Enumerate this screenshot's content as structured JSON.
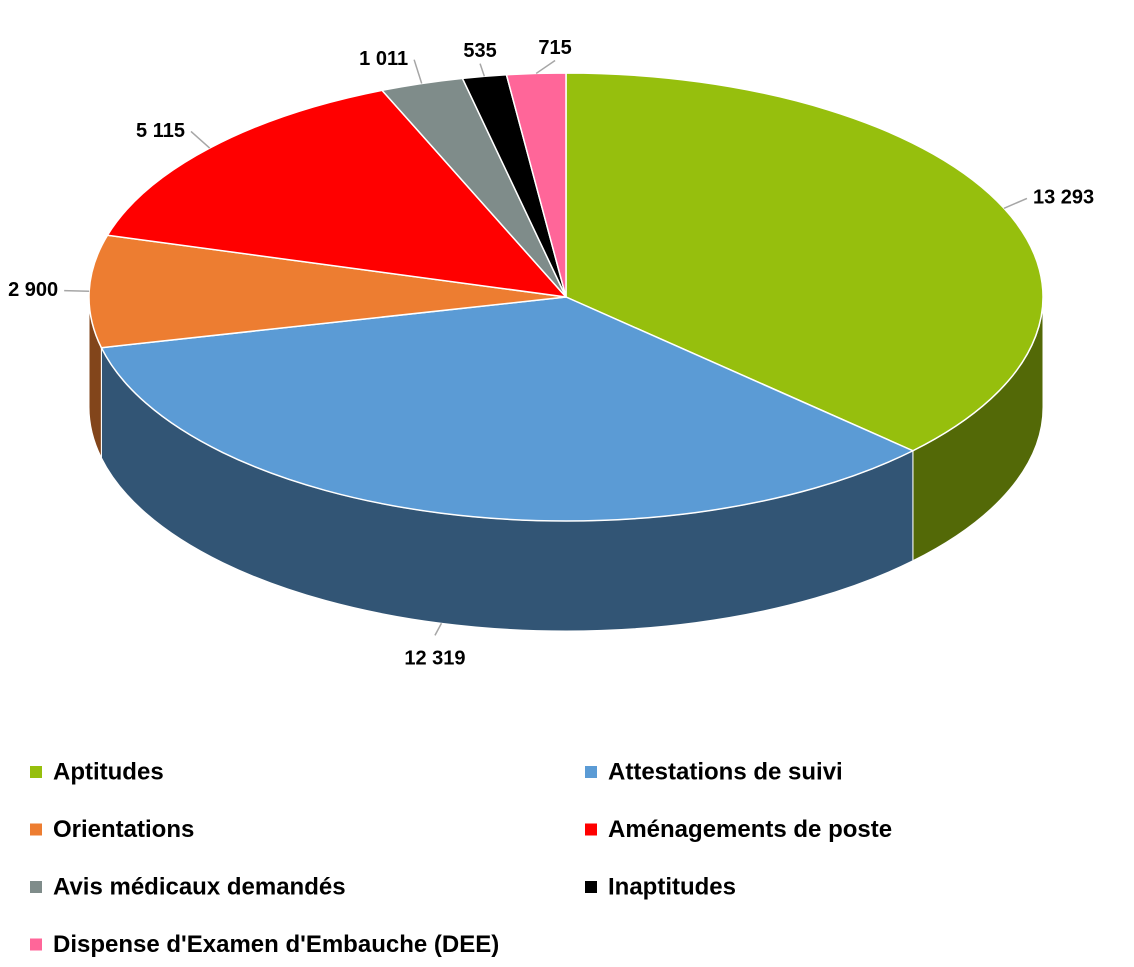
{
  "chart_data": {
    "type": "pie",
    "categories": [
      "Aptitudes",
      "Attestations de suivi",
      "Orientations",
      "Aménagements de poste",
      "Avis médicaux demandés",
      "Inaptitudes",
      "Dispense d'Examen d'Embauche (DEE)"
    ],
    "values": [
      13293,
      12319,
      2900,
      5115,
      1011,
      535,
      715
    ],
    "value_labels": [
      "13 293",
      "12 319",
      "2 900",
      "5 115",
      "1 011",
      "535",
      "715"
    ],
    "colors": [
      "#96bf0d",
      "#5b9bd5",
      "#ed7d31",
      "#ff0000",
      "#7f8c8a",
      "#000000",
      "#ff6699"
    ]
  }
}
